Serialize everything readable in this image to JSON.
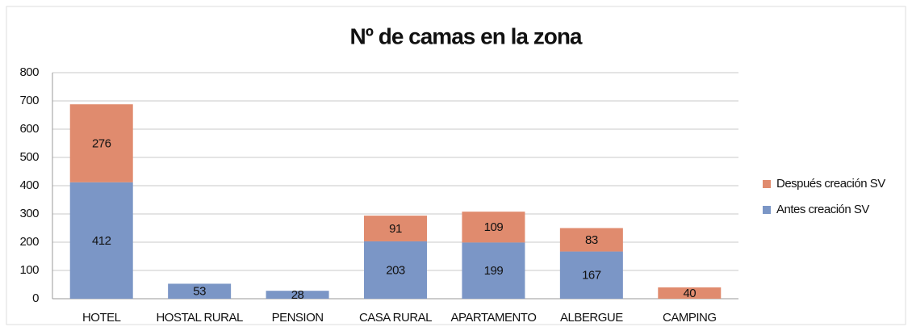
{
  "chart_data": {
    "type": "stacked_bar",
    "title": "Nº de camas en la zona",
    "categories": [
      "HOTEL",
      "HOSTAL RURAL",
      "PENSION",
      "CASA RURAL",
      "APARTAMENTO",
      "ALBERGUE",
      "CAMPING"
    ],
    "series": [
      {
        "name": "Antes creación SV",
        "color": "#7b96c6",
        "values": [
          412,
          53,
          28,
          203,
          199,
          167,
          null
        ]
      },
      {
        "name": "Después creación SV",
        "color": "#e08b6e",
        "values": [
          276,
          null,
          null,
          91,
          109,
          83,
          40
        ]
      }
    ],
    "ylim": [
      0,
      800
    ],
    "yticks": [
      0,
      100,
      200,
      300,
      400,
      500,
      600,
      700,
      800
    ],
    "grid": true,
    "legend": "right"
  }
}
